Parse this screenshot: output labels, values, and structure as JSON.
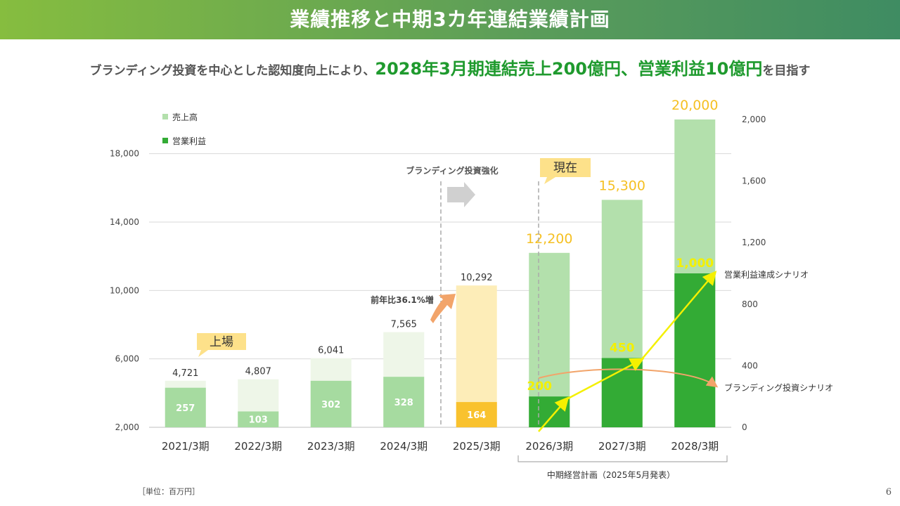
{
  "title": "業績推移と中期3カ年連結業績計画",
  "subtitle": {
    "part1": "ブランディング投資を中心とした認知度向上により、",
    "highlight": "2028年3月期連結売上200億円、営業利益10億円",
    "part2": "を目指す"
  },
  "unit_note": "［単位：百万円］",
  "page_number": "6",
  "chart_data": {
    "type": "bar",
    "categories": [
      "2021/3期",
      "2022/3期",
      "2023/3期",
      "2024/3期",
      "2025/3期",
      "2026/3期",
      "2027/3期",
      "2028/3期"
    ],
    "series": [
      {
        "name": "売上高",
        "axis": "left",
        "values": [
          4721,
          4807,
          6041,
          7565,
          10292,
          12200,
          15300,
          20000
        ],
        "labels": [
          "4,721",
          "4,807",
          "6,041",
          "7,565",
          "10,292",
          "12,200",
          "15,300",
          "20,000"
        ]
      },
      {
        "name": "営業利益",
        "axis": "right",
        "values": [
          257,
          103,
          302,
          328,
          164,
          200,
          450,
          1000
        ],
        "labels": [
          "257",
          "103",
          "302",
          "328",
          "164",
          "200",
          "450",
          "1,000"
        ]
      }
    ],
    "left_axis": {
      "min": 2000,
      "max": 20000,
      "ticks": [
        2000,
        6000,
        10000,
        14000,
        18000
      ],
      "tick_labels": [
        "2,000",
        "6,000",
        "10,000",
        "14,000",
        "18,000"
      ]
    },
    "right_axis": {
      "min": 0,
      "max": 2000,
      "ticks": [
        0,
        400,
        800,
        1200,
        1600,
        2000
      ],
      "tick_labels": [
        "0",
        "400",
        "800",
        "1,200",
        "1,600",
        "2,000"
      ]
    },
    "grid": true,
    "legend_position": "top-left",
    "colors": {
      "sales_past": "#eef6e8",
      "profit_past": "#a6dba0",
      "sales_2025": "#fdedb8",
      "profit_2025": "#f9c22e",
      "sales_plan": "#b3e0ac",
      "profit_plan": "#33ab35",
      "plan_label": "#f5c023",
      "arrow_yellow": "#f4f000",
      "arrow_orange": "#f2a46a",
      "callout_bg": "#fde18a",
      "grid": "#d9d9d9"
    },
    "annotations": {
      "listing": "上場",
      "current": "現在",
      "branding_investment": "ブランディング投資強化",
      "yoy": "前年比36.1%増",
      "op_scenario": "営業利益達成シナリオ",
      "branding_scenario": "ブランディング投資シナリオ",
      "plan_bracket": "中期経営計画（2025年5月発表）"
    }
  }
}
